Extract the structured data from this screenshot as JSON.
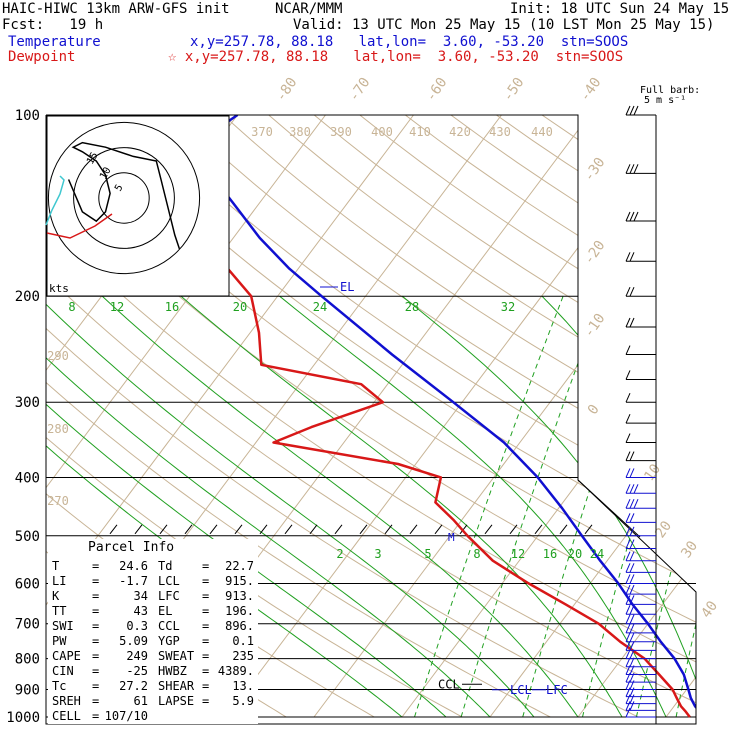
{
  "header": {
    "model": "HAIC-HIWC 13km ARW-GFS init",
    "center": "NCAR/MMM",
    "init": "Init: 18 UTC Sun 24 May 15",
    "fcst": "Fcst:   19 h",
    "valid": "Valid: 13 UTC Mon 25 May 15 (10 LST Mon 25 May 15)",
    "temp_label": "Temperature",
    "temp_info": "x,y=257.78, 88.18   lat,lon=  3.60, -53.20  stn=SOOS",
    "dew_label": "Dewpoint",
    "dew_info": "☆ x,y=257.78, 88.18   lat,lon=  3.60, -53.20  stn=SOOS"
  },
  "colors": {
    "temperature": "#1010d0",
    "dewpoint": "#d81818",
    "mixing_ratio": "#20a020",
    "dry_adiabat": "#c8b496",
    "moist_adiabat": "#20a020",
    "isotherm": "#c8b496",
    "hodo_wind": "#000000",
    "hodo_low": "#40c8d0"
  },
  "barb_header": {
    "line1": "Full barb:",
    "line2": "5 m s⁻¹"
  },
  "hodograph": {
    "units": "kts",
    "rings": [
      "5",
      "10",
      "15"
    ]
  },
  "parcel_info": {
    "title": "Parcel Info",
    "rows": [
      {
        "l1": "T",
        "v1": "24.6",
        "l2": "Td",
        "v2": "22.7"
      },
      {
        "l1": "LI",
        "v1": "-1.7",
        "l2": "LCL",
        "v2": "915."
      },
      {
        "l1": "K",
        "v1": "34",
        "l2": "LFC",
        "v2": "913."
      },
      {
        "l1": "TT",
        "v1": "43",
        "l2": "EL",
        "v2": "196."
      },
      {
        "l1": "SWI",
        "v1": "0.3",
        "l2": "CCL",
        "v2": "896."
      },
      {
        "l1": "PW",
        "v1": "5.09",
        "l2": "YGP",
        "v2": "0.1"
      },
      {
        "l1": "CAPE",
        "v1": "249",
        "l2": "SWEAT",
        "v2": "235"
      },
      {
        "l1": "CIN",
        "v1": "-25",
        "l2": "HWBZ",
        "v2": "4389."
      },
      {
        "l1": "Tc",
        "v1": "27.2",
        "l2": "SHEAR",
        "v2": "13."
      },
      {
        "l1": "SREH",
        "v1": "61",
        "l2": "LAPSE",
        "v2": "5.9"
      },
      {
        "l1": "CELL",
        "v1": "107/10",
        "l2": "",
        "v2": ""
      }
    ]
  },
  "chart_data": {
    "type": "skew-t",
    "y_axis": {
      "pressure_labels": [
        "100",
        "200",
        "300",
        "400",
        "500",
        "600",
        "700",
        "800",
        "900",
        "1000"
      ],
      "pressure_values": [
        100,
        200,
        300,
        400,
        500,
        600,
        700,
        800,
        900,
        1000
      ],
      "scale": "log",
      "range": [
        100,
        1000
      ]
    },
    "isotherm_labels": [
      "-80",
      "-70",
      "-60",
      "-50",
      "-40",
      "-30",
      "-20",
      "-10",
      "0",
      "10",
      "20",
      "30",
      "40"
    ],
    "isotherm_values": [
      -80,
      -70,
      -60,
      -50,
      -40,
      -30,
      -20,
      -10,
      0,
      10,
      20,
      30,
      40
    ],
    "theta_labels": [
      "370",
      "380",
      "390",
      "400",
      "410",
      "420",
      "430",
      "440"
    ],
    "theta_left_labels": [
      "290",
      "280",
      "270"
    ],
    "mixing_ratio_upper_labels": [
      "8",
      "12",
      "16",
      "20",
      "24",
      "28",
      "32"
    ],
    "mixing_ratio_lower_labels": [
      "2",
      "3",
      "5",
      "8",
      "12",
      "16",
      "20",
      "24"
    ],
    "markers": {
      "el": "EL",
      "ccl": "CCL",
      "lcl": "LCL",
      "lfc": "LFC",
      "m": "M"
    },
    "series": [
      {
        "name": "Temperature",
        "points": [
          [
            1000,
            24.6
          ],
          [
            980,
            23.4
          ],
          [
            960,
            22.4
          ],
          [
            930,
            21.2
          ],
          [
            900,
            20.2
          ],
          [
            850,
            18.4
          ],
          [
            800,
            16.0
          ],
          [
            750,
            13.0
          ],
          [
            700,
            10.0
          ],
          [
            650,
            6.6
          ],
          [
            600,
            3.2
          ],
          [
            550,
            -0.8
          ],
          [
            500,
            -5.0
          ],
          [
            450,
            -9.6
          ],
          [
            400,
            -15.0
          ],
          [
            350,
            -21.8
          ],
          [
            300,
            -31.0
          ],
          [
            250,
            -42.0
          ],
          [
            200,
            -55.0
          ],
          [
            180,
            -61.0
          ],
          [
            160,
            -67.0
          ],
          [
            140,
            -73.0
          ],
          [
            120,
            -80.0
          ],
          [
            110,
            -82.0
          ],
          [
            100,
            -80.0
          ]
        ]
      },
      {
        "name": "Dewpoint",
        "points": [
          [
            1000,
            22.7
          ],
          [
            980,
            21.8
          ],
          [
            960,
            20.8
          ],
          [
            930,
            19.6
          ],
          [
            900,
            18.4
          ],
          [
            850,
            15.6
          ],
          [
            800,
            12.6
          ],
          [
            750,
            8.4
          ],
          [
            700,
            4.4
          ],
          [
            650,
            -1.0
          ],
          [
            600,
            -7.0
          ],
          [
            550,
            -13.0
          ],
          [
            500,
            -18.0
          ],
          [
            470,
            -21.0
          ],
          [
            440,
            -24.5
          ],
          [
            400,
            -26.0
          ],
          [
            380,
            -32.0
          ],
          [
            350,
            -48.0
          ],
          [
            330,
            -45.0
          ],
          [
            300,
            -39.0
          ],
          [
            280,
            -43.0
          ],
          [
            260,
            -56.0
          ],
          [
            230,
            -59.0
          ],
          [
            200,
            -63.0
          ],
          [
            180,
            -68.0
          ],
          [
            160,
            -76.0
          ],
          [
            140,
            -84.0
          ],
          [
            120,
            -89.0
          ],
          [
            110,
            -89.0
          ],
          [
            100,
            -87.0
          ]
        ]
      }
    ],
    "wind_barbs": {
      "unit_text": "5 m s⁻¹",
      "levels": [
        1000,
        975,
        950,
        925,
        900,
        875,
        850,
        825,
        800,
        775,
        750,
        725,
        700,
        675,
        650,
        625,
        600,
        575,
        550,
        525,
        500,
        475,
        450,
        425,
        400,
        375,
        350,
        325,
        300,
        275,
        250,
        225,
        200,
        175,
        150,
        125,
        100
      ],
      "speed_knots": [
        10,
        15,
        20,
        20,
        15,
        15,
        15,
        15,
        20,
        20,
        15,
        15,
        15,
        15,
        15,
        15,
        20,
        20,
        15,
        15,
        15,
        20,
        25,
        25,
        20,
        15,
        10,
        10,
        10,
        10,
        10,
        15,
        20,
        20,
        25,
        25,
        30
      ]
    },
    "hodograph_points": [
      [
        -12,
        4
      ],
      [
        -9,
        -3
      ],
      [
        -6,
        -5
      ],
      [
        -4,
        -3
      ],
      [
        -3,
        1
      ],
      [
        -4,
        5
      ],
      [
        -6,
        8
      ],
      [
        -9,
        10
      ],
      [
        -11,
        11
      ],
      [
        -9,
        12
      ],
      [
        -4,
        11
      ],
      [
        2,
        9
      ],
      [
        7,
        8
      ],
      [
        8,
        4
      ],
      [
        9,
        0
      ],
      [
        10,
        -4
      ],
      [
        11,
        -8
      ],
      [
        12,
        -11
      ]
    ],
    "hodograph_low_points": [
      [
        -20,
        -5
      ],
      [
        -21,
        -3
      ],
      [
        -22,
        1
      ],
      [
        -21,
        4
      ],
      [
        -19,
        6
      ]
    ]
  }
}
